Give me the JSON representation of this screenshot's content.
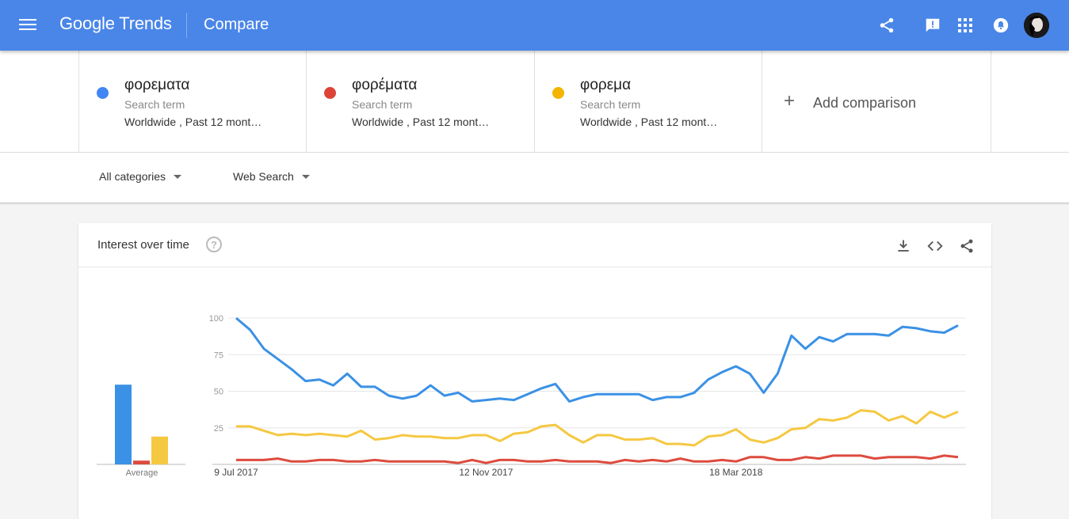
{
  "header": {
    "logo_google": "Google",
    "logo_trends": "Trends",
    "page_title": "Compare",
    "icons": [
      "share-icon",
      "feedback-icon",
      "apps-icon",
      "notifications-icon"
    ]
  },
  "terms": [
    {
      "name": "φορεματα",
      "type": "Search term",
      "scope": "Worldwide , Past 12 mont…",
      "color": "#4285f4"
    },
    {
      "name": "φορέματα",
      "type": "Search term",
      "scope": "Worldwide , Past 12 mont…",
      "color": "#db4437"
    },
    {
      "name": "φορεμα",
      "type": "Search term",
      "scope": "Worldwide , Past 12 mont…",
      "color": "#f4b400"
    }
  ],
  "add_comparison": {
    "plus": "+",
    "label": "Add comparison"
  },
  "filters": {
    "category": "All categories",
    "search_type": "Web Search"
  },
  "interest_card": {
    "title": "Interest over time",
    "help": "?",
    "icons": [
      "download-icon",
      "embed-icon",
      "share-icon"
    ]
  },
  "chart_data": {
    "type": "line",
    "ylim": [
      0,
      100
    ],
    "y_ticks": [
      "100",
      "75",
      "50",
      "25"
    ],
    "x_tick_labels": [
      "9 Jul 2017",
      "12 Nov 2017",
      "18 Mar 2018"
    ],
    "x_tick_index": [
      0,
      18,
      36
    ],
    "average_label": "Average",
    "averages": [
      63,
      3,
      22
    ],
    "series": [
      {
        "color": "#3b91e5",
        "values": [
          100,
          92,
          79,
          72,
          65,
          57,
          58,
          54,
          62,
          53,
          53,
          47,
          45,
          47,
          54,
          47,
          49,
          43,
          44,
          45,
          44,
          48,
          52,
          55,
          43,
          46,
          48,
          48,
          48,
          48,
          44,
          46,
          46,
          49,
          58,
          63,
          67,
          62,
          49,
          62,
          88,
          79,
          87,
          84,
          89,
          89,
          89,
          88,
          94,
          93,
          91,
          90,
          95
        ]
      },
      {
        "color": "#dd4b3e",
        "values": [
          3,
          3,
          3,
          4,
          2,
          2,
          3,
          3,
          2,
          2,
          3,
          2,
          2,
          2,
          2,
          2,
          1,
          3,
          1,
          3,
          3,
          2,
          2,
          3,
          2,
          2,
          2,
          1,
          3,
          2,
          3,
          2,
          4,
          2,
          2,
          3,
          2,
          5,
          5,
          3,
          3,
          5,
          4,
          6,
          6,
          6,
          4,
          5,
          5,
          5,
          4,
          6,
          5
        ]
      },
      {
        "color": "#f5c842",
        "values": [
          26,
          26,
          23,
          20,
          21,
          20,
          21,
          20,
          19,
          23,
          17,
          18,
          20,
          19,
          19,
          18,
          18,
          20,
          20,
          16,
          21,
          22,
          26,
          27,
          20,
          15,
          20,
          20,
          17,
          17,
          18,
          14,
          14,
          13,
          19,
          20,
          24,
          17,
          15,
          18,
          24,
          25,
          31,
          30,
          32,
          37,
          36,
          30,
          33,
          28,
          36,
          32,
          36
        ]
      }
    ]
  }
}
